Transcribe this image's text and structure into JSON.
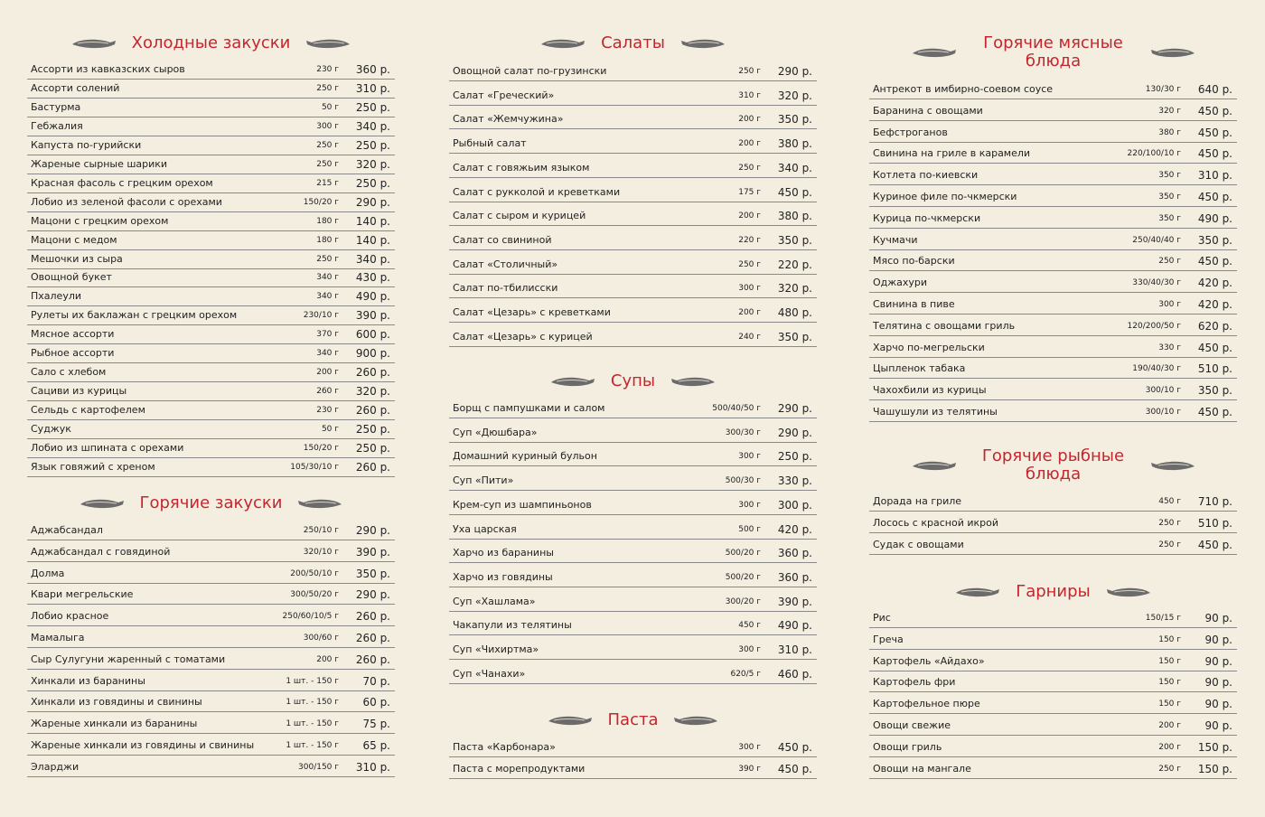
{
  "sections": [
    {
      "title": "Холодные закуски",
      "items": [
        {
          "name": "Ассорти из кавказских сыров",
          "weight": "230 г",
          "price": "360 р."
        },
        {
          "name": "Ассорти солений",
          "weight": "250 г",
          "price": "310 р."
        },
        {
          "name": "Бастурма",
          "weight": "50 г",
          "price": "250 р."
        },
        {
          "name": "Гебжалия",
          "weight": "300 г",
          "price": "340 р."
        },
        {
          "name": "Капуста по-гурийски",
          "weight": "250 г",
          "price": "250 р."
        },
        {
          "name": "Жареные сырные шарики",
          "weight": "250 г",
          "price": "320 р."
        },
        {
          "name": "Красная фасоль с грецким орехом",
          "weight": "215 г",
          "price": "250 р."
        },
        {
          "name": "Лобио из зеленой фасоли с орехами",
          "weight": "150/20 г",
          "price": "290 р."
        },
        {
          "name": "Мацони с грецким орехом",
          "weight": "180 г",
          "price": "140 р."
        },
        {
          "name": "Мацони с медом",
          "weight": "180 г",
          "price": "140 р."
        },
        {
          "name": "Мешочки из сыра",
          "weight": "250 г",
          "price": "340 р."
        },
        {
          "name": "Овощной букет",
          "weight": "340 г",
          "price": "430 р."
        },
        {
          "name": "Пхалеули",
          "weight": "340 г",
          "price": "490 р."
        },
        {
          "name": "Рулеты их баклажан с грецким орехом",
          "weight": "230/10 г",
          "price": "390 р."
        },
        {
          "name": "Мясное ассорти",
          "weight": "370 г",
          "price": "600 р."
        },
        {
          "name": "Рыбное ассорти",
          "weight": "340 г",
          "price": "900 р."
        },
        {
          "name": "Сало с хлебом",
          "weight": "200 г",
          "price": "260 р."
        },
        {
          "name": "Сациви из курицы",
          "weight": "260 г",
          "price": "320 р."
        },
        {
          "name": "Сельдь с картофелем",
          "weight": "230 г",
          "price": "260 р."
        },
        {
          "name": "Суджук",
          "weight": "50 г",
          "price": "250 р."
        },
        {
          "name": "Лобио из шпината с орехами",
          "weight": "150/20 г",
          "price": "250 р."
        },
        {
          "name": "Язык говяжий с хреном",
          "weight": "105/30/10 г",
          "price": "260 р."
        }
      ]
    },
    {
      "title": "Горячие закуски",
      "items": [
        {
          "name": "Аджабсандал",
          "weight": "250/10 г",
          "price": "290 р."
        },
        {
          "name": "Аджабсандал с говядиной",
          "weight": "320/10 г",
          "price": "390 р."
        },
        {
          "name": "Долма",
          "weight": "200/50/10 г",
          "price": "350 р."
        },
        {
          "name": "Квари мегрельские",
          "weight": "300/50/20 г",
          "price": "290 р."
        },
        {
          "name": "Лобио красное",
          "weight": "250/60/10/5 г",
          "price": "260 р."
        },
        {
          "name": "Мамалыга",
          "weight": "300/60 г",
          "price": "260 р."
        },
        {
          "name": "Сыр Сулугуни жаренный с томатами",
          "weight": "200 г",
          "price": "260 р."
        },
        {
          "name": "Хинкали из баранины",
          "weight": "1 шт. - 150 г",
          "price": "70 р."
        },
        {
          "name": "Хинкали из говядины и свинины",
          "weight": "1 шт. - 150 г",
          "price": "60 р."
        },
        {
          "name": "Жареные хинкали из баранины",
          "weight": "1 шт. - 150 г",
          "price": "75 р."
        },
        {
          "name": "Жареные хинкали из говядины и свинины",
          "weight": "1 шт. - 150 г",
          "price": "65 р."
        },
        {
          "name": "Эларджи",
          "weight": "300/150 г",
          "price": "310 р."
        }
      ]
    },
    {
      "title": "Салаты",
      "items": [
        {
          "name": "Овощной салат по-грузински",
          "weight": "250 г",
          "price": "290 р."
        },
        {
          "name": "Салат «Греческий»",
          "weight": "310 г",
          "price": "320 р."
        },
        {
          "name": "Салат «Жемчужина»",
          "weight": "200 г",
          "price": "350 р."
        },
        {
          "name": "Рыбный салат",
          "weight": "200 г",
          "price": "380 р."
        },
        {
          "name": "Салат с говяжьим языком",
          "weight": "250 г",
          "price": "340 р."
        },
        {
          "name": "Салат с рукколой и креветками",
          "weight": "175 г",
          "price": "450 р."
        },
        {
          "name": "Салат с сыром и курицей",
          "weight": "200 г",
          "price": "380 р."
        },
        {
          "name": "Салат со свининой",
          "weight": "220 г",
          "price": "350 р."
        },
        {
          "name": "Салат «Столичный»",
          "weight": "250 г",
          "price": "220 р."
        },
        {
          "name": "Салат по-тбилисски",
          "weight": "300 г",
          "price": "320 р."
        },
        {
          "name": "Салат «Цезарь» с креветками",
          "weight": "200 г",
          "price": "480 р."
        },
        {
          "name": "Салат «Цезарь» с курицей",
          "weight": "240 г",
          "price": "350 р."
        }
      ]
    },
    {
      "title": "Супы",
      "items": [
        {
          "name": "Борщ с пампушками и салом",
          "weight": "500/40/50 г",
          "price": "290 р."
        },
        {
          "name": "Суп «Дюшбара»",
          "weight": "300/30 г",
          "price": "290 р."
        },
        {
          "name": "Домашний куриный бульон",
          "weight": "300 г",
          "price": "250 р."
        },
        {
          "name": "Суп «Пити»",
          "weight": "500/30 г",
          "price": "330 р."
        },
        {
          "name": "Крем-суп из шампиньонов",
          "weight": "300 г",
          "price": "300 р."
        },
        {
          "name": "Уха царская",
          "weight": "500 г",
          "price": "420 р."
        },
        {
          "name": "Харчо из баранины",
          "weight": "500/20 г",
          "price": "360 р."
        },
        {
          "name": "Харчо из говядины",
          "weight": "500/20 г",
          "price": "360 р."
        },
        {
          "name": "Суп «Хашлама»",
          "weight": "300/20 г",
          "price": "390 р."
        },
        {
          "name": "Чакапули из телятины",
          "weight": "450 г",
          "price": "490 р."
        },
        {
          "name": "Суп «Чихиртма»",
          "weight": "300 г",
          "price": "310 р."
        },
        {
          "name": "Суп «Чанахи»",
          "weight": "620/5 г",
          "price": "460 р."
        }
      ]
    },
    {
      "title": "Паста",
      "items": [
        {
          "name": "Паста «Карбонара»",
          "weight": "300 г",
          "price": "450 р."
        },
        {
          "name": "Паста с морепродуктами",
          "weight": "390 г",
          "price": "450 р."
        }
      ]
    },
    {
      "title": "Горячие мясные блюда",
      "items": [
        {
          "name": "Антрекот в имбирно-соевом соусе",
          "weight": "130/30 г",
          "price": "640 р."
        },
        {
          "name": "Баранина с овощами",
          "weight": "320 г",
          "price": "450 р."
        },
        {
          "name": "Бефстроганов",
          "weight": "380 г",
          "price": "450 р."
        },
        {
          "name": "Свинина на гриле в карамели",
          "weight": "220/100/10 г",
          "price": "450 р."
        },
        {
          "name": "Котлета по-киевски",
          "weight": "350 г",
          "price": "310 р."
        },
        {
          "name": "Куриное филе по-чкмерски",
          "weight": "350 г",
          "price": "450 р."
        },
        {
          "name": "Курица по-чкмерски",
          "weight": "350 г",
          "price": "490 р."
        },
        {
          "name": "Кучмачи",
          "weight": "250/40/40 г",
          "price": "350 р."
        },
        {
          "name": "Мясо по-барски",
          "weight": "250 г",
          "price": "450 р."
        },
        {
          "name": "Оджахури",
          "weight": "330/40/30 г",
          "price": "420 р."
        },
        {
          "name": "Свинина в пиве",
          "weight": "300 г",
          "price": "420 р."
        },
        {
          "name": "Телятина с овощами гриль",
          "weight": "120/200/50 г",
          "price": "620 р."
        },
        {
          "name": "Харчо по-мегрельски",
          "weight": "330 г",
          "price": "450 р."
        },
        {
          "name": "Цыпленок табака",
          "weight": "190/40/30 г",
          "price": "510 р."
        },
        {
          "name": "Чахохбили из курицы",
          "weight": "300/10 г",
          "price": "350 р."
        },
        {
          "name": "Чашушули из телятины",
          "weight": "300/10 г",
          "price": "450 р."
        }
      ]
    },
    {
      "title": "Горячие рыбные блюда",
      "items": [
        {
          "name": "Дорада на гриле",
          "weight": "450 г",
          "price": "710 р."
        },
        {
          "name": "Лосось с красной икрой",
          "weight": "250 г",
          "price": "510 р."
        },
        {
          "name": "Судак с овощами",
          "weight": "250 г",
          "price": "450 р."
        }
      ]
    },
    {
      "title": "Гарниры",
      "items": [
        {
          "name": "Рис",
          "weight": "150/15 г",
          "price": "90 р."
        },
        {
          "name": "Греча",
          "weight": "150 г",
          "price": "90 р."
        },
        {
          "name": "Картофель «Айдахо»",
          "weight": "150 г",
          "price": "90 р."
        },
        {
          "name": "Картофель фри",
          "weight": "150 г",
          "price": "90 р."
        },
        {
          "name": "Картофельное пюре",
          "weight": "150 г",
          "price": "90 р."
        },
        {
          "name": "Овощи свежие",
          "weight": "200 г",
          "price": "90 р."
        },
        {
          "name": "Овощи гриль",
          "weight": "200 г",
          "price": "150 р."
        },
        {
          "name": "Овощи на мангале",
          "weight": "250 г",
          "price": "150 р."
        }
      ]
    }
  ]
}
